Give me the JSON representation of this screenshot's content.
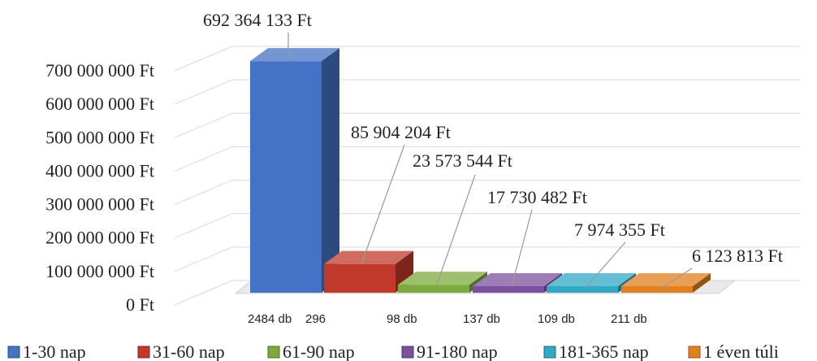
{
  "chart_data": {
    "type": "bar",
    "style": "3d-columns",
    "categories": [
      "1-30 nap",
      "31-60 nap",
      "61-90 nap",
      "91-180 nap",
      "181-365 nap",
      "1 éven túli"
    ],
    "values": [
      692364133,
      85904204,
      23573544,
      17730482,
      7974355,
      6123813
    ],
    "data_labels": [
      "692 364 133 Ft",
      "85 904 204 Ft",
      "23 573 544 Ft",
      "17 730 482 Ft",
      "7 974 355 Ft",
      "6 123 813 Ft"
    ],
    "x_tick_labels": [
      "2484 db",
      "296",
      "98 db",
      "137 db",
      "109 db",
      "211 db"
    ],
    "y_tick_labels": [
      "0 Ft",
      "100 000 000 Ft",
      "200 000 000 Ft",
      "300 000 000 Ft",
      "400 000 000 Ft",
      "500 000 000 Ft",
      "600 000 000 Ft",
      "700 000 000 Ft"
    ],
    "ylim": [
      0,
      700000000
    ],
    "grid": true,
    "legend_position": "bottom",
    "colors": [
      "#4472C4",
      "#C0392B",
      "#7DAA3C",
      "#7B519D",
      "#31A8C4",
      "#E2801E"
    ]
  }
}
